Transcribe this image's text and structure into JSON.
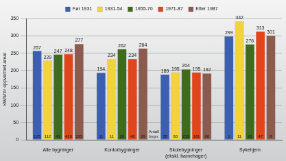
{
  "chart_data": {
    "type": "bar",
    "y_label": "kWh/m² oppvarmet areal",
    "categories": [
      "Alle bygninger",
      "Kontorbygninger",
      "Skolebygninger (ekskl. barnehager)",
      "Sykehjem"
    ],
    "series": [
      {
        "name": "Før 1931",
        "color": "#3d5fb0",
        "values": [
          257,
          194,
          189,
          299
        ],
        "counts": [
          125,
          11,
          38,
          1
        ]
      },
      {
        "name": "1931-54",
        "color": "#f2d43a",
        "values": [
          229,
          234,
          195,
          342
        ],
        "counts": [
          112,
          11,
          60,
          11
        ]
      },
      {
        "name": "1955-70",
        "color": "#3f6b1f",
        "values": [
          247,
          262,
          204,
          276
        ],
        "counts": [
          41,
          26,
          219,
          26
        ]
      },
      {
        "name": "1971-87",
        "color": "#e0451c",
        "values": [
          248,
          234,
          195,
          313
        ],
        "counts": [
          416,
          46,
          161,
          47
        ]
      },
      {
        "name": "Etter 1987",
        "color": "#8c5a4e",
        "values": [
          277,
          264,
          192,
          301
        ],
        "counts": [
          135,
          29,
          60,
          8
        ]
      }
    ],
    "annotations": [
      "Antall bygn."
    ],
    "ylim": [
      0,
      350
    ],
    "yticks": [
      0,
      50,
      100,
      150,
      200,
      250,
      300,
      350
    ],
    "grid": true,
    "legend": "top",
    "data_labels": true
  }
}
